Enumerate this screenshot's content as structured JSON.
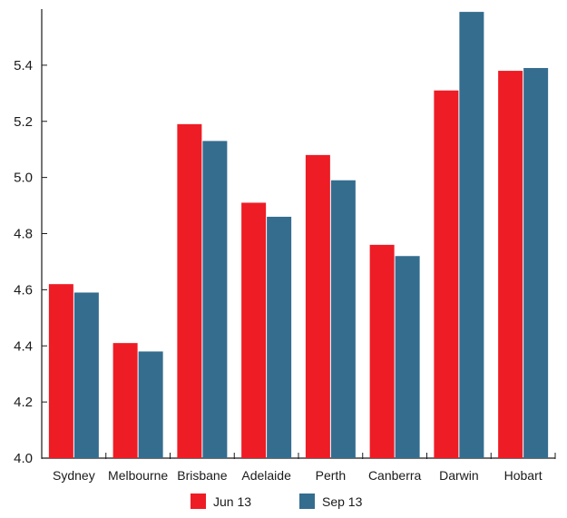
{
  "chart_data": {
    "type": "bar",
    "categories": [
      "Sydney",
      "Melbourne",
      "Brisbane",
      "Adelaide",
      "Perth",
      "Canberra",
      "Darwin",
      "Hobart"
    ],
    "series": [
      {
        "name": "Jun 13",
        "color": "#ee1c25",
        "values": [
          4.62,
          4.41,
          5.19,
          4.91,
          5.08,
          4.76,
          5.31,
          5.38
        ]
      },
      {
        "name": "Sep 13",
        "color": "#356d8f",
        "values": [
          4.59,
          4.38,
          5.13,
          4.86,
          4.99,
          4.72,
          5.59,
          5.39
        ]
      }
    ],
    "ylim": [
      4.0,
      5.6
    ],
    "yticks": [
      "4.0",
      "4.2",
      "4.4",
      "4.6",
      "4.8",
      "5.0",
      "5.2",
      "5.4"
    ],
    "title": "",
    "xlabel": "",
    "ylabel": "",
    "grid": false,
    "legend_position": "bottom-center"
  }
}
